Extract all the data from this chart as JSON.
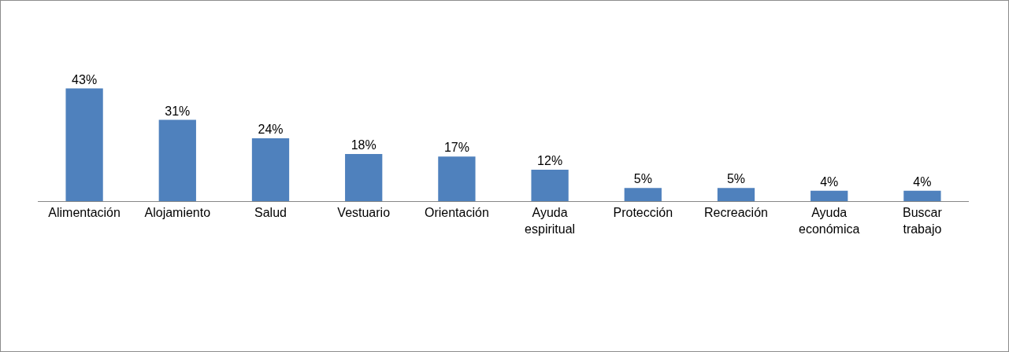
{
  "chart_data": {
    "type": "bar",
    "categories": [
      "Alimentación",
      "Alojamiento",
      "Salud",
      "Vestuario",
      "Orientación",
      "Ayuda espiritual",
      "Protección",
      "Recreación",
      "Ayuda económica",
      "Buscar trabajo"
    ],
    "values": [
      43,
      31,
      24,
      18,
      17,
      12,
      5,
      5,
      4,
      4
    ],
    "value_labels": [
      "43%",
      "31%",
      "24%",
      "18%",
      "17%",
      "12%",
      "5%",
      "5%",
      "4%",
      "4%"
    ],
    "color": "#4f81bd",
    "grid": false,
    "legend": false,
    "tick_labels": "x"
  }
}
